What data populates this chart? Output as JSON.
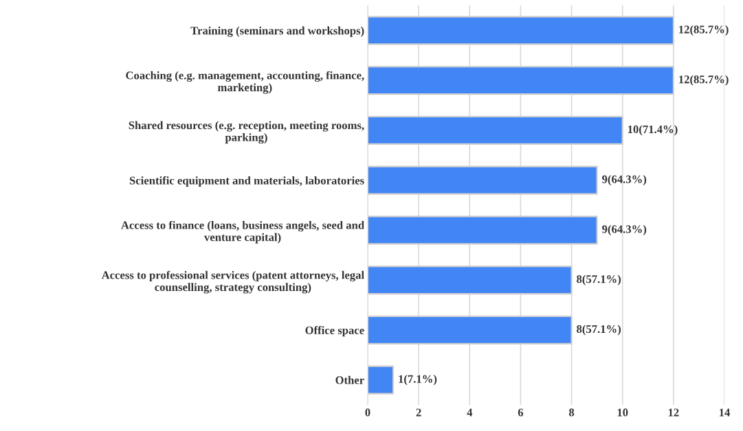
{
  "chart_data": {
    "type": "bar",
    "orientation": "horizontal",
    "categories": [
      "Training (seminars and workshops)",
      "Coaching (e.g. management, accounting, finance, marketing)",
      "Shared resources (e.g. reception, meeting rooms, parking)",
      "Scientific equipment and materials, laboratories",
      "Access to finance (loans, business angels, seed and venture capital)",
      "Access to professional services (patent attorneys, legal counselling, strategy consulting)",
      "Office space",
      "Other"
    ],
    "values": [
      12,
      12,
      10,
      9,
      9,
      8,
      8,
      1
    ],
    "value_labels": [
      "12(85.7%)",
      "12(85.7%)",
      "10(71.4%)",
      "9(64.3%)",
      "9(64.3%)",
      "8(57.1%)",
      "8(57.1%)",
      "1(7.1%)"
    ],
    "color": "#4285f4",
    "xlim": [
      0,
      14
    ],
    "xticks": [
      0,
      2,
      4,
      6,
      8,
      10,
      12,
      14
    ],
    "grid": "x",
    "legend": false
  }
}
